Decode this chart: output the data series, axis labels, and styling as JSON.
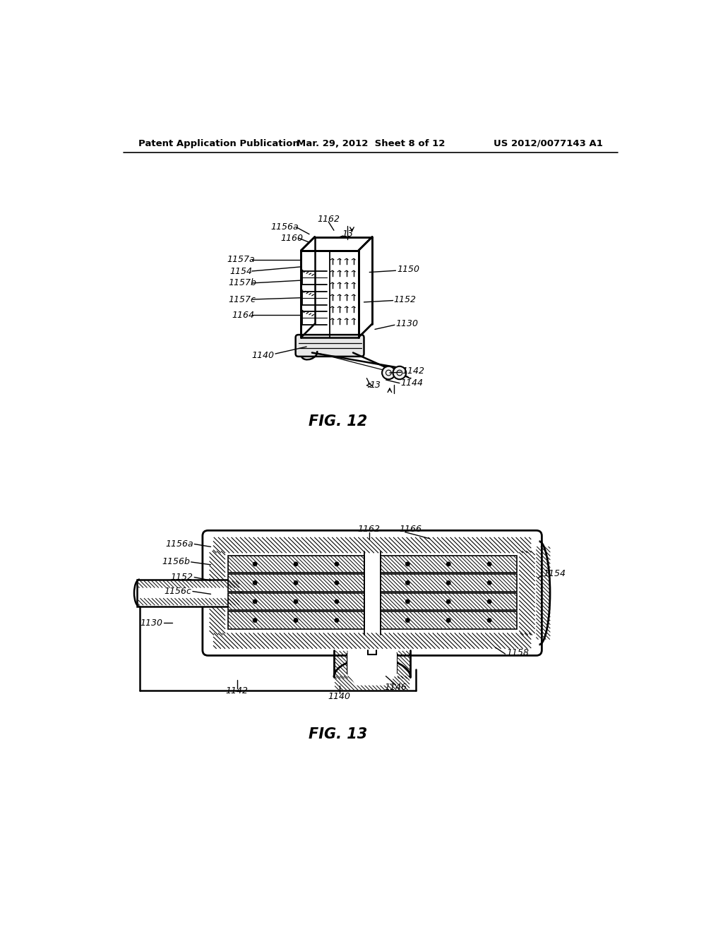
{
  "background_color": "#ffffff",
  "header_left": "Patent Application Publication",
  "header_center": "Mar. 29, 2012  Sheet 8 of 12",
  "header_right": "US 2012/0077143 A1",
  "fig12_title": "FIG. 12",
  "fig13_title": "FIG. 13",
  "header_font_size": 9.5,
  "title_font_size": 15
}
